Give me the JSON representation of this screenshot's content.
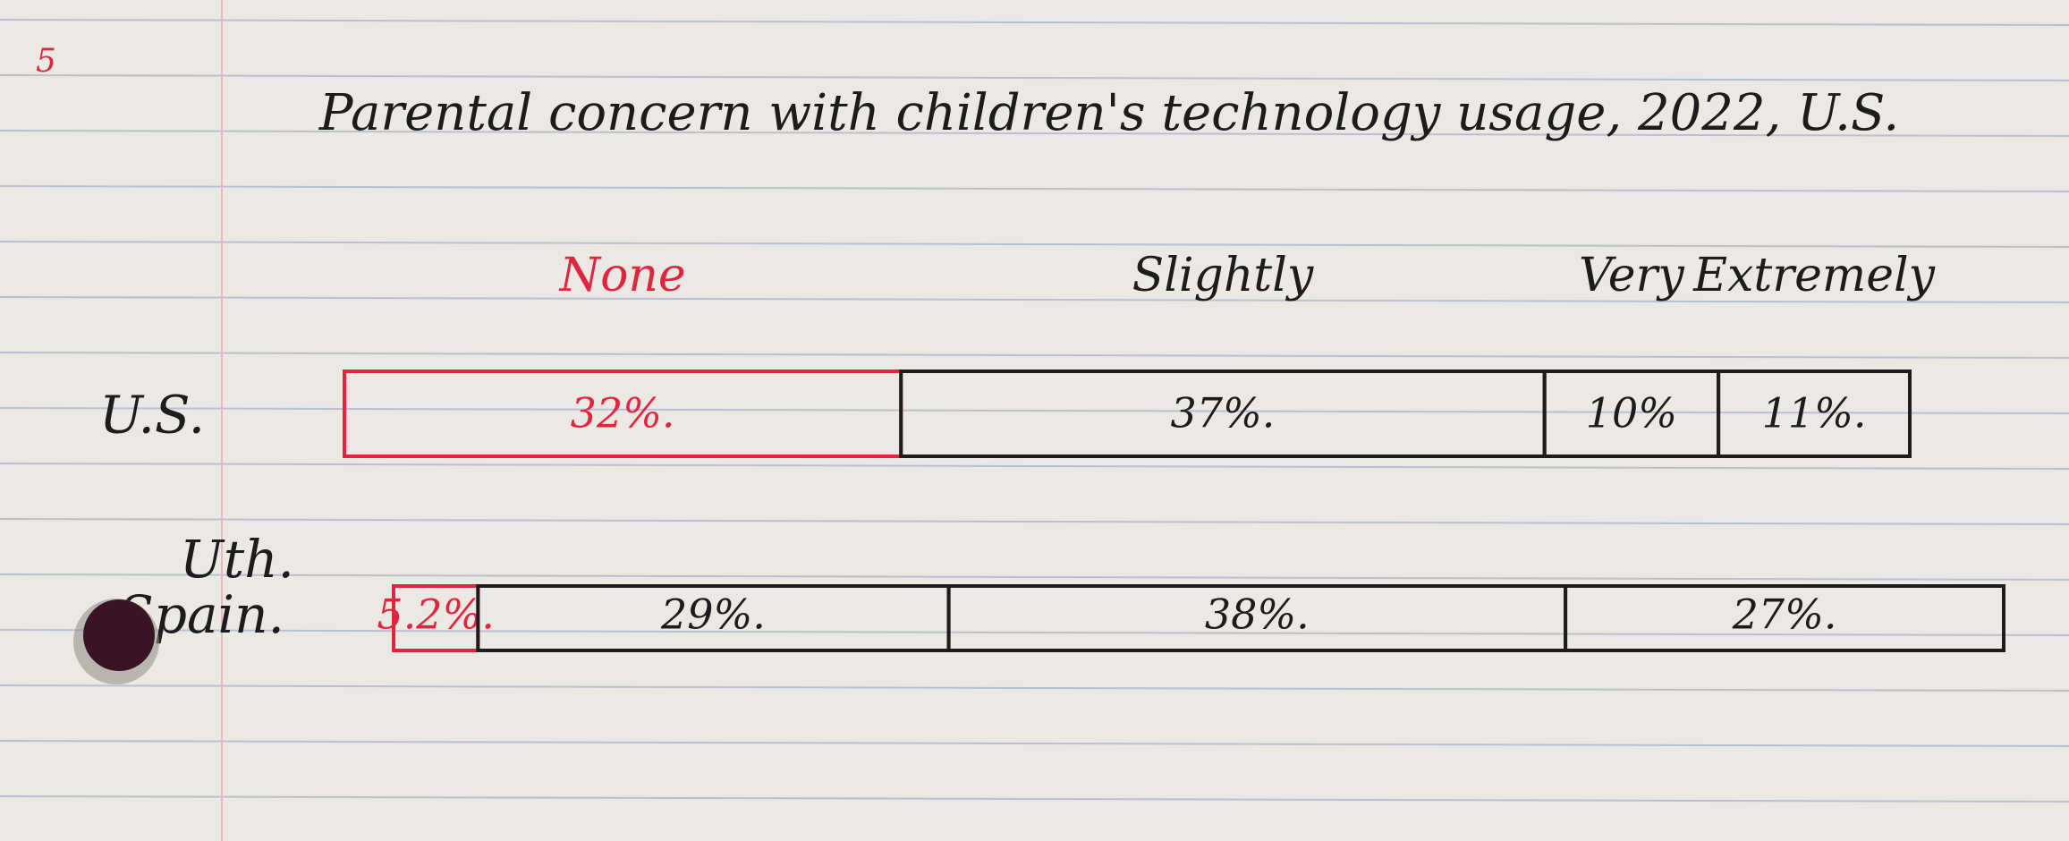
{
  "page_number": "5",
  "chart_data": {
    "type": "bar",
    "stacked": true,
    "orientation": "horizontal",
    "title": "Parental concern with children's technology usage, 2022, U.S.",
    "categories": [
      "U.S.",
      "Spain"
    ],
    "category_labels": [
      "U.S.",
      "Spain."
    ],
    "category_note": "Uth.",
    "series": [
      {
        "name": "None",
        "values": [
          32,
          5.2
        ],
        "labels": [
          "32%.",
          "5.2%."
        ],
        "color": "#e0253f"
      },
      {
        "name": "Slightly",
        "values": [
          37,
          29
        ],
        "labels": [
          "37%.",
          "29%."
        ],
        "color": "#1c1c1c"
      },
      {
        "name": "Very",
        "values": [
          10,
          38
        ],
        "labels": [
          "10%",
          "38%."
        ],
        "color": "#1c1c1c"
      },
      {
        "name": "Extremely",
        "values": [
          11,
          27
        ],
        "labels": [
          "11%.",
          "27%."
        ],
        "color": "#1c1c1c"
      }
    ],
    "legend_position": "top",
    "grid": false
  },
  "colors": {
    "paper": "#ece8e3",
    "rule_line": "#b9bfd4",
    "margin_line": "#e9b8bd",
    "ink": "#1c1c1c",
    "red_ink": "#e0253f",
    "punch_hole": "#3a1426"
  }
}
